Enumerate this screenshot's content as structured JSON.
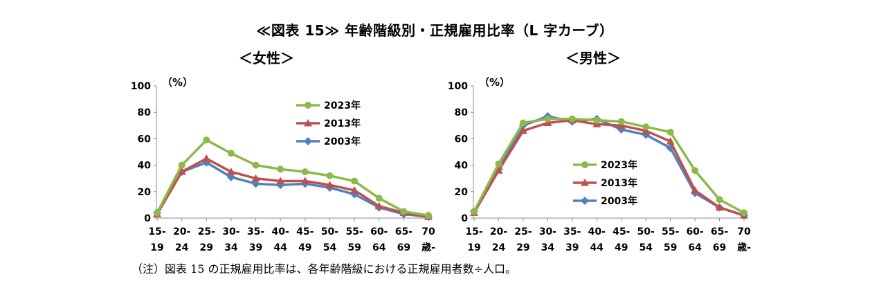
{
  "title": "≪図表 15≫ 年齢階級別・正規雇用比率（L 字カーブ）",
  "subtitles": {
    "women": "＜女性＞",
    "men": "＜男性＞"
  },
  "note": "（注）図表 15 の正規雇用比率は、各年齢階級における正規雇用者数÷人口。",
  "colors": {
    "2023": "#8cb94a",
    "2013": "#c0504d",
    "2003": "#4f81bd",
    "axis": "#888888"
  },
  "chart_data": [
    {
      "type": "line",
      "title": "＜女性＞",
      "ylabel": "（%）",
      "ylim": [
        0,
        100
      ],
      "yticks": [
        "0",
        "20",
        "40",
        "60",
        "80",
        "100"
      ],
      "categories_top": [
        "15-",
        "20-",
        "25-",
        "30-",
        "35-",
        "40-",
        "45-",
        "50-",
        "55-",
        "60-",
        "65-",
        "70"
      ],
      "categories_bottom": [
        "19",
        "24",
        "29",
        "34",
        "39",
        "44",
        "49",
        "54",
        "59",
        "64",
        "69",
        "歳-"
      ],
      "legend_position": "upper-middle",
      "series": [
        {
          "name": "2023年",
          "marker": "circle",
          "values": [
            4,
            40,
            59,
            49,
            40,
            37,
            35,
            32,
            28,
            15,
            5,
            2
          ]
        },
        {
          "name": "2013年",
          "marker": "triangle",
          "values": [
            3,
            35,
            45,
            35,
            30,
            28,
            28,
            25,
            21,
            9,
            4,
            1
          ]
        },
        {
          "name": "2003年",
          "marker": "diamond",
          "values": [
            4,
            35,
            42,
            31,
            26,
            25,
            26,
            23,
            18,
            8,
            3,
            1
          ]
        }
      ]
    },
    {
      "type": "line",
      "title": "＜男性＞",
      "ylabel": "（%）",
      "ylim": [
        0,
        100
      ],
      "yticks": [
        "0",
        "20",
        "40",
        "60",
        "80",
        "100"
      ],
      "categories_top": [
        "15-",
        "20-",
        "25-",
        "30-",
        "35-",
        "40-",
        "45-",
        "50-",
        "55-",
        "60-",
        "65-",
        "70"
      ],
      "categories_bottom": [
        "19",
        "24",
        "29",
        "34",
        "39",
        "44",
        "49",
        "54",
        "59",
        "64",
        "69",
        "歳-"
      ],
      "legend_position": "lower-middle",
      "series": [
        {
          "name": "2023年",
          "marker": "circle",
          "values": [
            5,
            41,
            72,
            75,
            75,
            74,
            73,
            69,
            65,
            36,
            14,
            4
          ]
        },
        {
          "name": "2013年",
          "marker": "triangle",
          "values": [
            4,
            36,
            66,
            72,
            74,
            71,
            70,
            66,
            58,
            21,
            8,
            2
          ]
        },
        {
          "name": "2003年",
          "marker": "diamond",
          "values": [
            5,
            37,
            70,
            77,
            73,
            75,
            67,
            63,
            53,
            19,
            8,
            2
          ]
        }
      ]
    }
  ]
}
